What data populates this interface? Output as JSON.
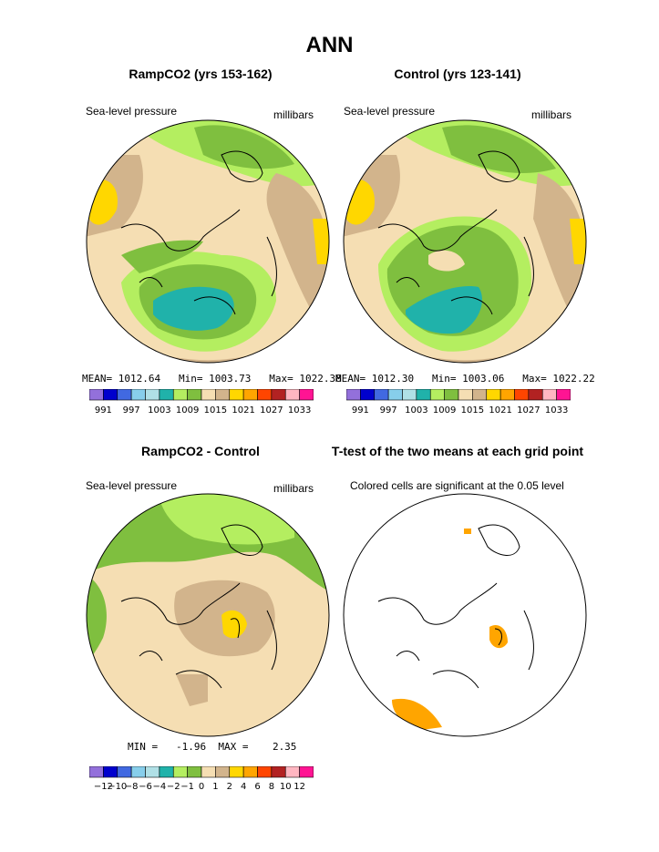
{
  "figure": {
    "title": "ANN"
  },
  "panels": [
    {
      "title": "RampCO2 (yrs 153-162)",
      "left_label": "Sea-level pressure",
      "right_label": "millibars",
      "stats": "MEAN= 1012.64   Min= 1003.73   Max= 1022.38"
    },
    {
      "title": "Control (yrs 123-141)",
      "left_label": "Sea-level pressure",
      "right_label": "millibars",
      "stats": "MEAN= 1012.30   Min= 1003.06   Max= 1022.22"
    },
    {
      "title": "RampCO2 - Control",
      "left_label": "Sea-level pressure",
      "right_label": "millibars",
      "stats": "MIN =   -1.96  MAX =    2.35"
    },
    {
      "title": "T-test of the two means at each grid point",
      "left_label": "Colored cells are significant at the 0.05 level"
    }
  ],
  "colorbars": {
    "absolute": {
      "colors": [
        "#9370db",
        "#0000cd",
        "#4169e1",
        "#87ceeb",
        "#b0e0e6",
        "#20b2aa",
        "#b4ee60",
        "#7fbf3f",
        "#f5deb3",
        "#d2b48c",
        "#ffd700",
        "#ffa500",
        "#ff4500",
        "#b22222",
        "#ffb6c1",
        "#ff1493"
      ],
      "labels": [
        "991",
        "997",
        "1003",
        "1009",
        "1015",
        "1021",
        "1027",
        "1033"
      ]
    },
    "difference": {
      "colors": [
        "#9370db",
        "#0000cd",
        "#4169e1",
        "#87ceeb",
        "#b0e0e6",
        "#20b2aa",
        "#b4ee60",
        "#7fbf3f",
        "#f5deb3",
        "#d2b48c",
        "#ffd700",
        "#ffa500",
        "#ff4500",
        "#b22222",
        "#ffb6c1",
        "#ff1493"
      ],
      "labels": [
        "−12",
        "−10",
        "−8",
        "−6",
        "−4",
        "−2",
        "−1",
        "0",
        "1",
        "2",
        "4",
        "6",
        "8",
        "10",
        "12"
      ]
    }
  },
  "map_colors": {
    "ocean_white": "#ffffff",
    "wheat": "#f5deb3",
    "tan": "#d2b48c",
    "light_green": "#b4ee60",
    "green": "#7fbf3f",
    "teal": "#20b2aa",
    "gold": "#ffd700",
    "orange": "#ffa500"
  }
}
